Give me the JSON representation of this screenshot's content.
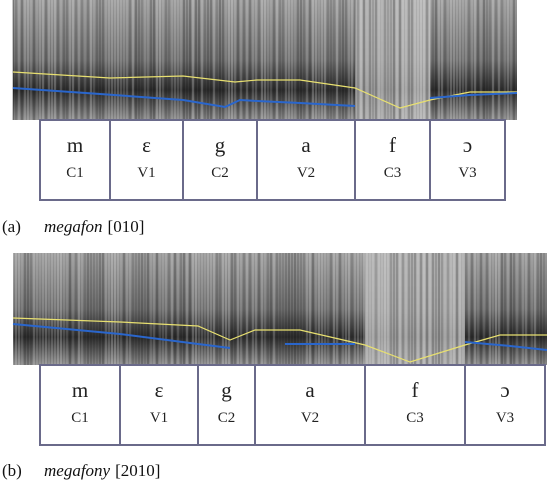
{
  "panels": [
    {
      "label": "(a)",
      "word": "megafon",
      "code": "[010]",
      "segments": [
        {
          "phone": "m",
          "slot": "C1"
        },
        {
          "phone": "ɛ",
          "slot": "V1"
        },
        {
          "phone": "g",
          "slot": "C2"
        },
        {
          "phone": "a",
          "slot": "V2"
        },
        {
          "phone": "f",
          "slot": "C3"
        },
        {
          "phone": "ɔ",
          "slot": "V3"
        }
      ]
    },
    {
      "label": "(b)",
      "word": "megafony",
      "code": "[2010]",
      "segments": [
        {
          "phone": "m",
          "slot": "C1"
        },
        {
          "phone": "ɛ",
          "slot": "V1"
        },
        {
          "phone": "g",
          "slot": "C2"
        },
        {
          "phone": "a",
          "slot": "V2"
        },
        {
          "phone": "f",
          "slot": "C3"
        },
        {
          "phone": "ɔ",
          "slot": "V3"
        }
      ]
    }
  ]
}
